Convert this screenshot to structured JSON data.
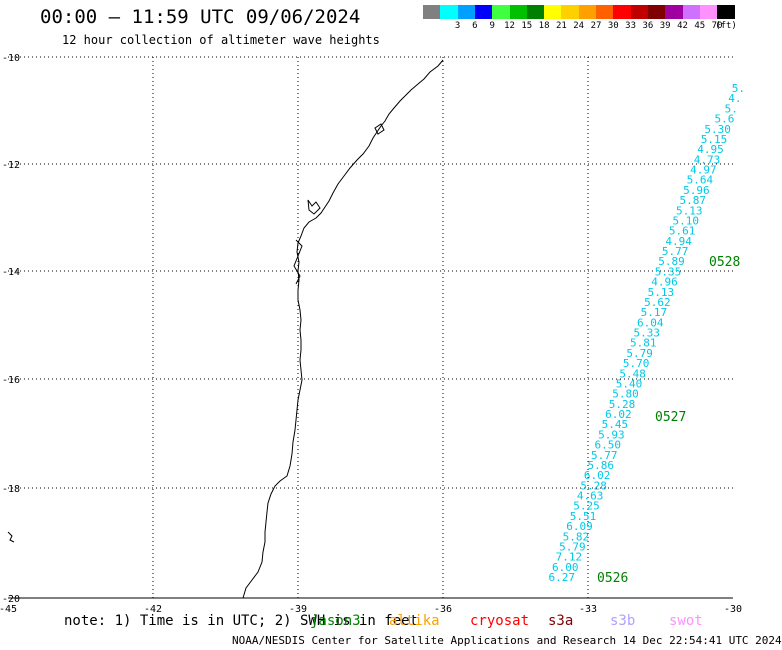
{
  "header": {
    "title": "00:00 – 11:59 UTC 09/06/2024",
    "subtitle": "12 hour collection of altimeter wave heights"
  },
  "legend": {
    "unit": "(ft)",
    "bins": [
      {
        "label": "",
        "color": "#808080"
      },
      {
        "label": "3",
        "color": "#00ffff"
      },
      {
        "label": "6",
        "color": "#00a0ff"
      },
      {
        "label": "9",
        "color": "#0000ff"
      },
      {
        "label": "12",
        "color": "#40ff40"
      },
      {
        "label": "15",
        "color": "#00c000"
      },
      {
        "label": "18",
        "color": "#008000"
      },
      {
        "label": "21",
        "color": "#ffff00"
      },
      {
        "label": "24",
        "color": "#ffd000"
      },
      {
        "label": "27",
        "color": "#ffa000"
      },
      {
        "label": "30",
        "color": "#ff6000"
      },
      {
        "label": "33",
        "color": "#ff0000"
      },
      {
        "label": "36",
        "color": "#c00000"
      },
      {
        "label": "39",
        "color": "#800000"
      },
      {
        "label": "42",
        "color": "#a000a0"
      },
      {
        "label": "45",
        "color": "#d070ff"
      },
      {
        "label": "70",
        "color": "#ff90ff"
      },
      {
        "label": "",
        "color": "#000000"
      }
    ]
  },
  "axes": {
    "lon_ticks": [
      "-45",
      "-42",
      "-39",
      "-36",
      "-33",
      "-30"
    ],
    "lat_ticks": [
      "-10",
      "-12",
      "-14",
      "-16",
      "-18",
      "-20"
    ]
  },
  "track": {
    "color": "#00c8e6",
    "values": [
      "5.",
      "4.",
      "5.",
      "5.6",
      "5.30",
      "5.15",
      "4.95",
      "4.73",
      "4.97",
      "5.64",
      "5.96",
      "5.87",
      "5.13",
      "5.10",
      "5.61",
      "4.94",
      "5.77",
      "5.89",
      "5.35",
      "4.96",
      "5.13",
      "5.62",
      "5.17",
      "6.04",
      "5.33",
      "5.81",
      "5.79",
      "5.70",
      "5.48",
      "5.40",
      "5.80",
      "5.28",
      "6.02",
      "5.45",
      "5.93",
      "6.50",
      "5.77",
      "5.86",
      "6.02",
      "5.28",
      "4.63",
      "5.25",
      "5.51",
      "6.09",
      "5.82",
      "5.79",
      "7.12",
      "6.00",
      "6.27"
    ]
  },
  "time_labels": {
    "color": "#008000",
    "items": [
      "0528",
      "0527",
      "0526"
    ]
  },
  "note": "note: 1) Time is in UTC; 2) SWH is in feet",
  "satellites": [
    {
      "name": "jason3",
      "color": "#008000"
    },
    {
      "name": "altika",
      "color": "#ffa000"
    },
    {
      "name": "cryosat",
      "color": "#ff0000"
    },
    {
      "name": "s3a",
      "color": "#800000"
    },
    {
      "name": "s3b",
      "color": "#b0a0ff"
    },
    {
      "name": "swot",
      "color": "#ff90ff"
    }
  ],
  "footer": "NOAA/NESDIS Center for Satellite Applications and Research   14 Dec 22:54:41 UTC 2024"
}
